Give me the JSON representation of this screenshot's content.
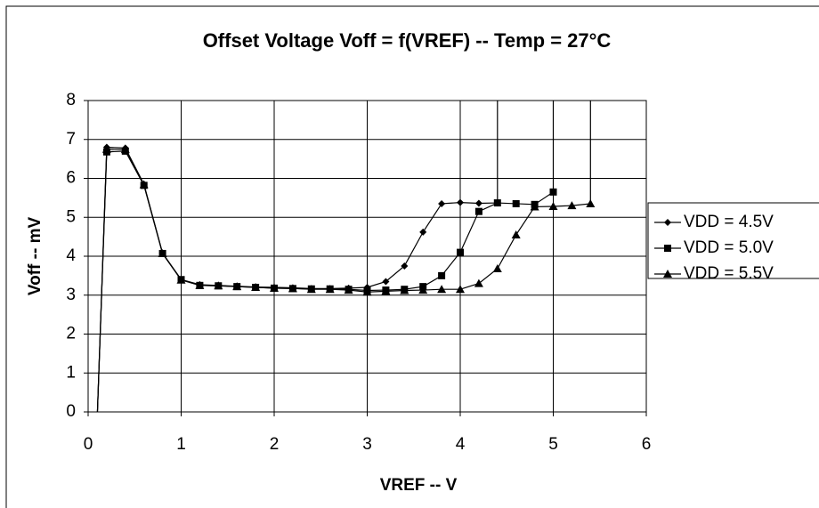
{
  "chart_data": {
    "type": "line",
    "title": "Offset Voltage Voff = f(VREF) -- Temp = 27°C",
    "xlabel": "VREF -- V",
    "ylabel": "Voff -- mV",
    "xlim": [
      0,
      6
    ],
    "xticks": [
      0,
      1,
      2,
      3,
      4,
      5,
      6
    ],
    "ylim": [
      0,
      8
    ],
    "yticks": [
      0,
      1,
      2,
      3,
      4,
      5,
      6,
      7,
      8
    ],
    "grid": true,
    "legend": "right",
    "series": [
      {
        "name": "VDD = 4.5V",
        "color": "#000000",
        "marker": "diamond",
        "x": [
          0.1,
          0.2,
          0.4,
          0.6,
          0.8,
          1.0,
          1.2,
          1.4,
          1.6,
          1.8,
          2.0,
          2.2,
          2.4,
          2.6,
          2.8,
          3.0,
          3.2,
          3.4,
          3.6,
          3.8,
          4.0,
          4.2,
          4.4,
          4.4
        ],
        "values": [
          0,
          6.8,
          6.78,
          5.85,
          4.08,
          3.4,
          3.27,
          3.25,
          3.23,
          3.21,
          3.2,
          3.19,
          3.17,
          3.17,
          3.18,
          3.2,
          3.35,
          3.75,
          4.62,
          5.35,
          5.38,
          5.36,
          5.37,
          9
        ]
      },
      {
        "name": "VDD = 5.0V",
        "color": "#000000",
        "marker": "square",
        "x": [
          0.1,
          0.2,
          0.4,
          0.6,
          0.8,
          1.0,
          1.2,
          1.4,
          1.6,
          1.8,
          2.0,
          2.2,
          2.4,
          2.6,
          2.8,
          3.0,
          3.2,
          3.4,
          3.6,
          3.8,
          4.0,
          4.2,
          4.4,
          4.6,
          4.8,
          5.0,
          5.0
        ],
        "values": [
          0,
          6.68,
          6.7,
          5.82,
          4.07,
          3.4,
          3.25,
          3.24,
          3.22,
          3.2,
          3.18,
          3.17,
          3.16,
          3.16,
          3.15,
          3.12,
          3.13,
          3.15,
          3.22,
          3.5,
          4.1,
          5.15,
          5.37,
          5.35,
          5.33,
          5.65,
          9
        ]
      },
      {
        "name": "VDD = 5.5V",
        "color": "#000000",
        "marker": "triangle",
        "x": [
          0.1,
          0.2,
          0.4,
          0.6,
          0.8,
          1.0,
          1.2,
          1.4,
          1.6,
          1.8,
          2.0,
          2.2,
          2.4,
          2.6,
          2.8,
          3.0,
          3.2,
          3.4,
          3.6,
          3.8,
          4.0,
          4.2,
          4.4,
          4.6,
          4.8,
          5.0,
          5.2,
          5.4,
          5.4
        ],
        "values": [
          0,
          6.75,
          6.74,
          5.84,
          4.07,
          3.39,
          3.25,
          3.24,
          3.22,
          3.2,
          3.18,
          3.17,
          3.15,
          3.15,
          3.13,
          3.08,
          3.1,
          3.12,
          3.13,
          3.15,
          3.15,
          3.3,
          3.68,
          4.55,
          5.27,
          5.28,
          5.3,
          5.35,
          9
        ]
      }
    ]
  }
}
